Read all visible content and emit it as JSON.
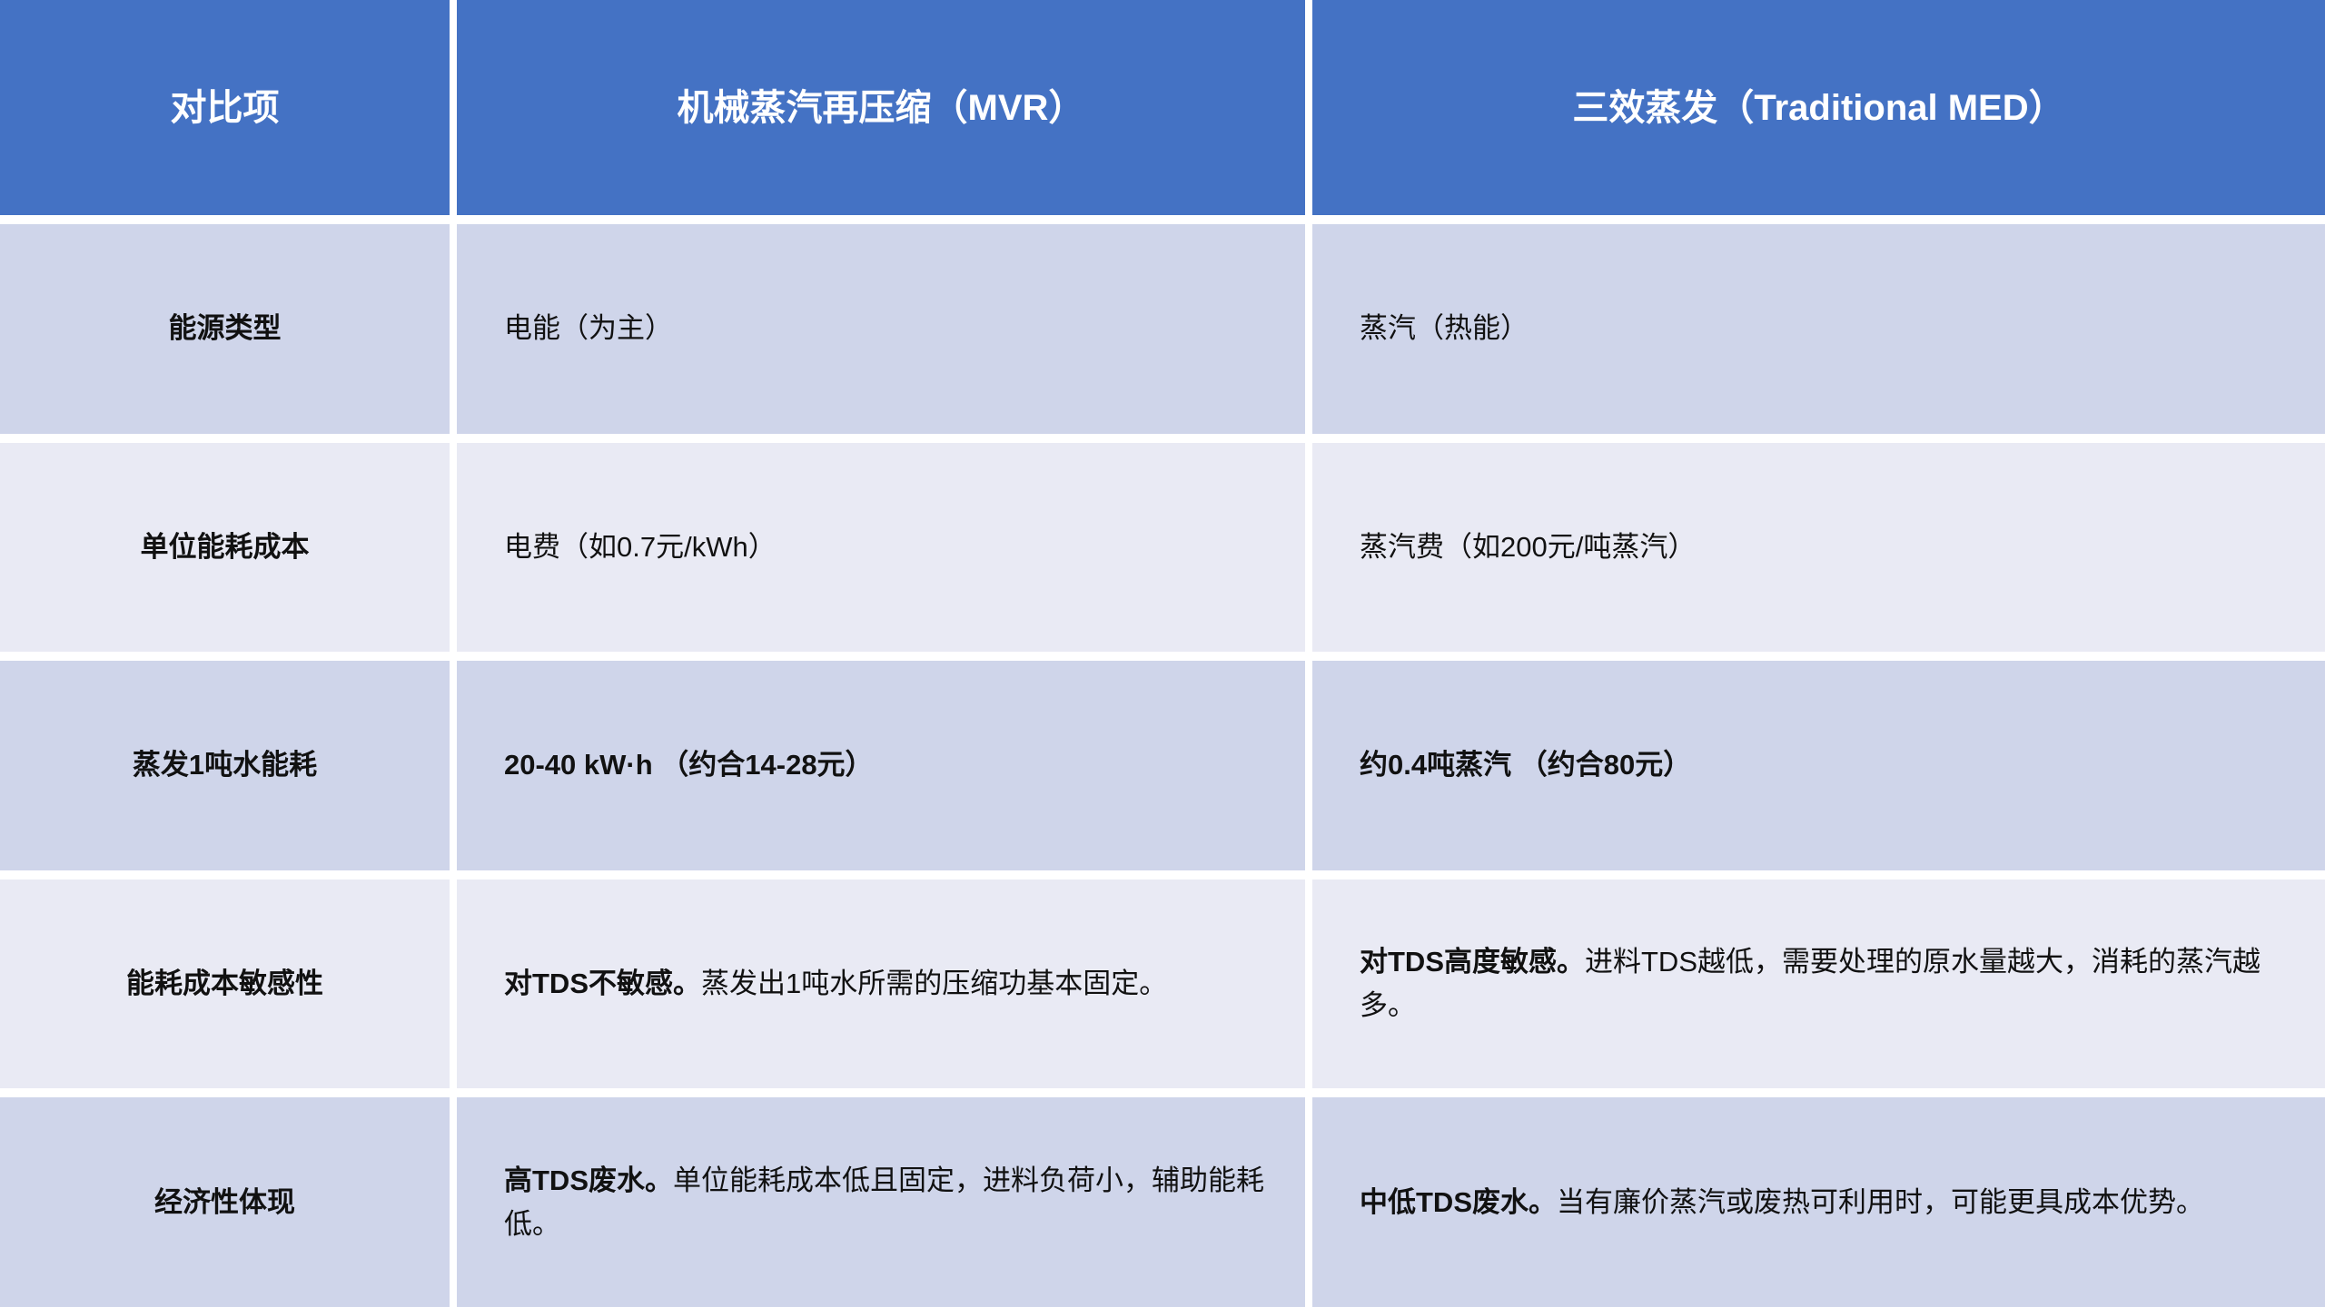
{
  "colors": {
    "header_bg": "#4472C4",
    "header_text": "#FFFFFF",
    "band_dark": "#CFD5EA",
    "band_light": "#E9EAF4",
    "body_text": "#111111",
    "divider": "#FFFFFF"
  },
  "chart_data": {
    "type": "table",
    "columns": [
      "对比项",
      "机械蒸汽再压缩（MVR）",
      "三效蒸发（Traditional MED）"
    ],
    "rows": [
      [
        "能源类型",
        "电能（为主）",
        "蒸汽（热能）"
      ],
      [
        "单位能耗成本",
        "电费（如0.7元/kWh）",
        "蒸汽费（如200元/吨蒸汽）"
      ],
      [
        "蒸发1吨水能耗",
        "20-40 kW·h （约合14-28元）",
        "约0.4吨蒸汽 （约合80元）"
      ],
      [
        "能耗成本敏感性",
        "对TDS不敏感。蒸发出1吨水所需的压缩功基本固定。",
        "对TDS高度敏感。进料TDS越低，需要处理的原水量越大，消耗的蒸汽越多。"
      ],
      [
        "经济性体现",
        "高TDS废水。单位能耗成本低且固定，进料负荷小，辅助能耗低。",
        "中低TDS废水。当有廉价蒸汽或废热可利用时，可能更具成本优势。"
      ]
    ],
    "layout": {
      "header_style": "solid-blue",
      "banding": [
        "dark",
        "light",
        "dark",
        "light",
        "dark"
      ],
      "gridlines": "white-gaps"
    }
  },
  "table": {
    "header": [
      "对比项",
      "机械蒸汽再压缩（MVR）",
      "三效蒸发（Traditional MED）"
    ],
    "rows": [
      {
        "label": "能源类型",
        "cells": [
          [
            {
              "t": "电能（为主）",
              "b": false
            }
          ],
          [
            {
              "t": "蒸汽（热能）",
              "b": false
            }
          ]
        ]
      },
      {
        "label": "单位能耗成本",
        "cells": [
          [
            {
              "t": "电费（如0.7元/kWh）",
              "b": false
            }
          ],
          [
            {
              "t": "蒸汽费（如200元/吨蒸汽）",
              "b": false
            }
          ]
        ]
      },
      {
        "label": "蒸发1吨水能耗",
        "cells": [
          [
            {
              "t": "20-40 kW·h （约合14-28元）",
              "b": true
            }
          ],
          [
            {
              "t": "约0.4吨蒸汽 （约合80元）",
              "b": true
            }
          ]
        ]
      },
      {
        "label": "能耗成本敏感性",
        "cells": [
          [
            {
              "t": "对TDS不敏感。",
              "b": true
            },
            {
              "t": "蒸发出1吨水所需的压缩功基本固定。",
              "b": false
            }
          ],
          [
            {
              "t": "对TDS高度敏感。",
              "b": true
            },
            {
              "t": "进料TDS越低，需要处理的原水量越大，消耗的蒸汽越多。",
              "b": false
            }
          ]
        ]
      },
      {
        "label": "经济性体现",
        "cells": [
          [
            {
              "t": "高TDS废水。",
              "b": true
            },
            {
              "t": "单位能耗成本低且固定，进料负荷小，辅助能耗低。",
              "b": false
            }
          ],
          [
            {
              "t": "中低TDS废水。",
              "b": true
            },
            {
              "t": "当有廉价蒸汽或废热可利用时，可能更具成本优势。",
              "b": false
            }
          ]
        ]
      }
    ]
  }
}
